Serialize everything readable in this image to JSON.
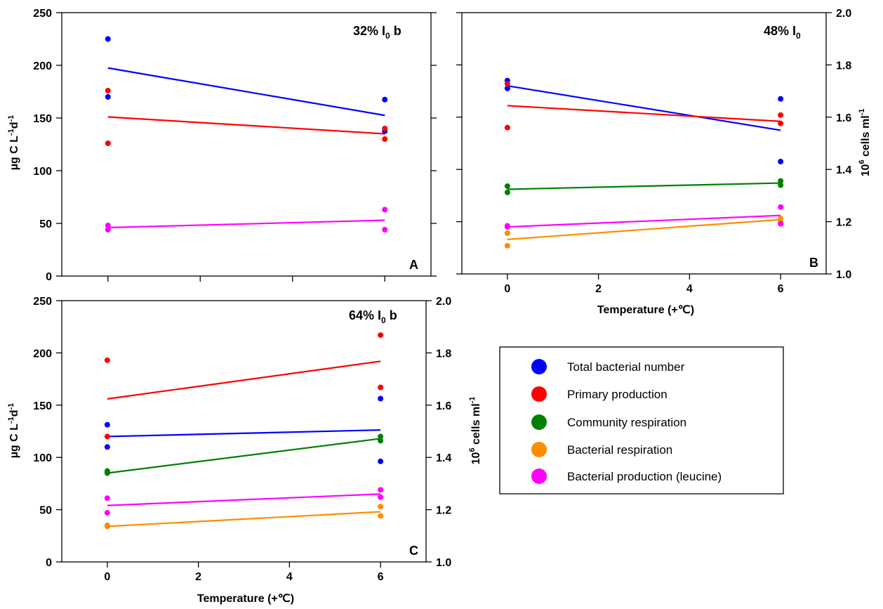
{
  "colors": {
    "total_bacterial_number": "#0000ff",
    "primary_production": "#ff0000",
    "community_respiration": "#008000",
    "bacterial_respiration": "#ff8c00",
    "bacterial_production_leucine": "#ff00ff"
  },
  "legend": {
    "items": [
      {
        "key": "total_bacterial_number",
        "label": "Total bacterial number"
      },
      {
        "key": "primary_production",
        "label": "Primary production"
      },
      {
        "key": "community_respiration",
        "label": "Community respiration"
      },
      {
        "key": "bacterial_respiration",
        "label": "Bacterial respiration"
      },
      {
        "key": "bacterial_production_leucine",
        "label": "Bacterial production (leucine)"
      }
    ]
  },
  "xlabel": "Temperature (+℃)",
  "chart_data": [
    {
      "type": "scatter",
      "panel": "A",
      "annotation": {
        "main": "32% I",
        "sub": "0",
        "suffix": " b"
      },
      "xlim": [
        -1,
        7
      ],
      "xticks": [
        "0",
        "2",
        "4",
        "6"
      ],
      "x_ticklabels_shown": false,
      "ylim": [
        0,
        250
      ],
      "yticks": [
        "0",
        "50",
        "100",
        "150",
        "200",
        "250"
      ],
      "ylabel": "µg C L-1d-1",
      "y2lim": [
        1.0,
        2.0
      ],
      "y2ticks": [],
      "series": [
        {
          "key": "total_bacterial_number",
          "axis": "right",
          "points": [
            [
              0,
              1.9
            ],
            [
              0,
              1.68
            ],
            [
              6,
              1.67
            ],
            [
              6,
              1.55
            ]
          ],
          "fit": [
            [
              0,
              1.79
            ],
            [
              6,
              1.61
            ]
          ]
        },
        {
          "key": "primary_production",
          "axis": "left",
          "points": [
            [
              0,
              176
            ],
            [
              0,
              126
            ],
            [
              6,
              140
            ],
            [
              6,
              130
            ]
          ],
          "fit": [
            [
              0,
              151
            ],
            [
              6,
              135
            ]
          ]
        },
        {
          "key": "bacterial_production_leucine",
          "axis": "left",
          "points": [
            [
              0,
              48
            ],
            [
              0,
              44
            ],
            [
              6,
              63
            ],
            [
              6,
              44
            ]
          ],
          "fit": [
            [
              0,
              46
            ],
            [
              6,
              53
            ]
          ]
        }
      ]
    },
    {
      "type": "scatter",
      "panel": "B",
      "annotation": {
        "main": "48% I",
        "sub": "0",
        "suffix": ""
      },
      "xlim": [
        -1,
        7
      ],
      "xticks": [
        "0",
        "2",
        "4",
        "6"
      ],
      "x_ticklabels_shown": true,
      "ylim": [
        0,
        250
      ],
      "yticks": [],
      "ylabel": "",
      "y2lim": [
        1.0,
        2.0
      ],
      "y2ticks": [
        "1.0",
        "1.2",
        "1.4",
        "1.6",
        "1.8",
        "2.0"
      ],
      "y2label": "10^6 cells ml-1",
      "series": [
        {
          "key": "total_bacterial_number",
          "axis": "right",
          "points": [
            [
              0,
              1.74
            ],
            [
              0,
              1.71
            ],
            [
              6,
              1.67
            ],
            [
              6,
              1.43
            ]
          ],
          "fit": [
            [
              0,
              1.72
            ],
            [
              6,
              1.55
            ]
          ]
        },
        {
          "key": "primary_production",
          "axis": "left",
          "points": [
            [
              0,
              182
            ],
            [
              0,
              140
            ],
            [
              6,
              152
            ],
            [
              6,
              144
            ]
          ],
          "fit": [
            [
              0,
              161
            ],
            [
              6,
              146
            ]
          ]
        },
        {
          "key": "community_respiration",
          "axis": "left",
          "points": [
            [
              0,
              84
            ],
            [
              0,
              78
            ],
            [
              6,
              89
            ],
            [
              6,
              85
            ]
          ],
          "fit": [
            [
              0,
              81
            ],
            [
              6,
              87
            ]
          ]
        },
        {
          "key": "bacterial_respiration",
          "axis": "left",
          "points": [
            [
              0,
              39
            ],
            [
              0,
              27
            ],
            [
              6,
              50
            ],
            [
              6,
              53
            ]
          ],
          "fit": [
            [
              0,
              33
            ],
            [
              6,
              52
            ]
          ]
        },
        {
          "key": "bacterial_production_leucine",
          "axis": "left",
          "points": [
            [
              0,
              46
            ],
            [
              0,
              45
            ],
            [
              6,
              64
            ],
            [
              6,
              48
            ]
          ],
          "fit": [
            [
              0,
              45
            ],
            [
              6,
              56
            ]
          ]
        }
      ]
    },
    {
      "type": "scatter",
      "panel": "C",
      "annotation": {
        "main": "64% I",
        "sub": "0",
        "suffix": " b"
      },
      "xlim": [
        -1,
        7
      ],
      "xticks": [
        "0",
        "2",
        "4",
        "6"
      ],
      "x_ticklabels_shown": true,
      "ylim": [
        0,
        250
      ],
      "yticks": [
        "0",
        "50",
        "100",
        "150",
        "200",
        "250"
      ],
      "ylabel": "µg C L-1d-1",
      "y2lim": [
        1.0,
        2.0
      ],
      "y2ticks": [
        "1.0",
        "1.2",
        "1.4",
        "1.6",
        "1.8",
        "2.0"
      ],
      "y2label": "10^6 cells ml-1",
      "series": [
        {
          "key": "total_bacterial_number",
          "axis": "right",
          "points": [
            [
              0,
              1.525
            ],
            [
              0,
              1.44
            ],
            [
              6,
              1.625
            ],
            [
              6,
              1.385
            ]
          ],
          "fit": [
            [
              0,
              1.48
            ],
            [
              6,
              1.505
            ]
          ]
        },
        {
          "key": "primary_production",
          "axis": "left",
          "points": [
            [
              0,
              193
            ],
            [
              0,
              120
            ],
            [
              6,
              217
            ],
            [
              6,
              167
            ]
          ],
          "fit": [
            [
              0,
              156
            ],
            [
              6,
              192
            ]
          ]
        },
        {
          "key": "community_respiration",
          "axis": "left",
          "points": [
            [
              0,
              87
            ],
            [
              0,
              85
            ],
            [
              6,
              120
            ],
            [
              6,
              116
            ]
          ],
          "fit": [
            [
              0,
              85
            ],
            [
              6,
              118
            ]
          ]
        },
        {
          "key": "bacterial_respiration",
          "axis": "left",
          "points": [
            [
              0,
              35
            ],
            [
              0,
              34
            ],
            [
              6,
              53
            ],
            [
              6,
              44
            ]
          ],
          "fit": [
            [
              0,
              34
            ],
            [
              6,
              48
            ]
          ]
        },
        {
          "key": "bacterial_production_leucine",
          "axis": "left",
          "points": [
            [
              0,
              61
            ],
            [
              0,
              47
            ],
            [
              6,
              69
            ],
            [
              6,
              62
            ]
          ],
          "fit": [
            [
              0,
              54
            ],
            [
              6,
              65
            ]
          ]
        }
      ]
    }
  ]
}
